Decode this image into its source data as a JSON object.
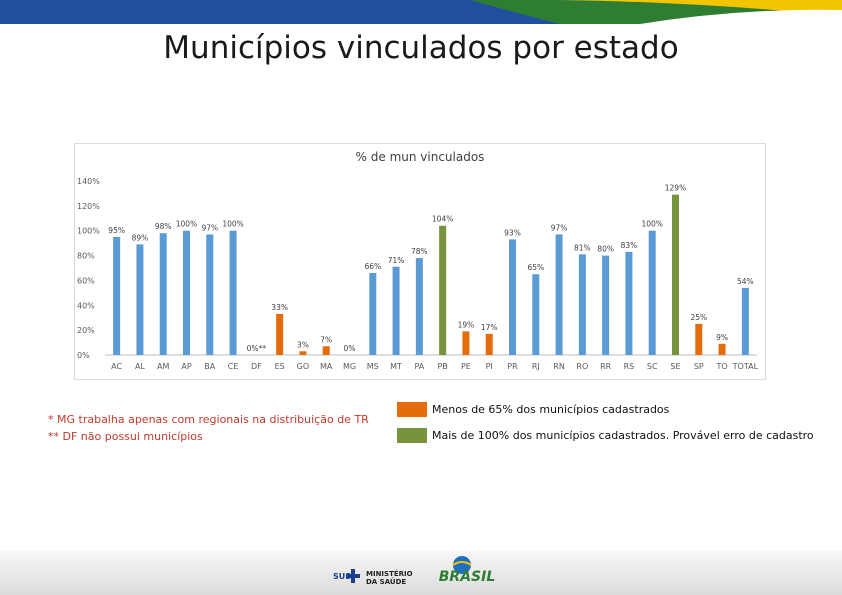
{
  "slide": {
    "title": "Municípios vinculados por estado"
  },
  "chart_data": {
    "type": "bar",
    "title": "% de mun vinculados",
    "y_ticks": [
      "140%",
      "120%",
      "100%",
      "80%",
      "60%",
      "40%",
      "20%",
      "0%"
    ],
    "ylim": [
      0,
      140
    ],
    "grid": false,
    "categories": [
      "AC",
      "AL",
      "AM",
      "AP",
      "BA",
      "CE",
      "DF",
      "ES",
      "GO",
      "MA",
      "MG",
      "MS",
      "MT",
      "PA",
      "PB",
      "PE",
      "PI",
      "PR",
      "RJ",
      "RN",
      "RO",
      "RR",
      "RS",
      "SC",
      "SE",
      "SP",
      "TO",
      "TOTAL"
    ],
    "values": [
      95,
      89,
      98,
      100,
      97,
      100,
      0,
      33,
      3,
      7,
      0,
      66,
      71,
      78,
      104,
      19,
      17,
      93,
      65,
      97,
      81,
      80,
      83,
      100,
      129,
      25,
      9,
      54
    ],
    "value_labels": [
      "95%",
      "89%",
      "98%",
      "100%",
      "97%",
      "100%",
      "0%**",
      "33%",
      "3%",
      "7%",
      "0%",
      "66%",
      "71%",
      "78%",
      "104%",
      "19%",
      "17%",
      "93%",
      "65%",
      "97%",
      "81%",
      "80%",
      "83%",
      "100%",
      "129%",
      "25%",
      "9%",
      "54%"
    ],
    "bar_groups": [
      "normal",
      "normal",
      "normal",
      "normal",
      "normal",
      "normal",
      "below",
      "below",
      "below",
      "below",
      "below",
      "normal",
      "normal",
      "normal",
      "above",
      "below",
      "below",
      "normal",
      "normal",
      "normal",
      "normal",
      "normal",
      "normal",
      "normal",
      "above",
      "below",
      "below",
      "normal"
    ],
    "colors": {
      "normal": "#5b9bd5",
      "below": "#e46c0a",
      "above": "#77933c",
      "title": "#404040",
      "tick": "#595959"
    }
  },
  "notes": {
    "mg": "* MG trabalha apenas com regionais na distribuição de TR",
    "df": "** DF não possui municípios"
  },
  "legend": {
    "below_label": "Menos de 65% dos municípios cadastrados",
    "above_label": "Mais de 100% dos municípios cadastrados. Provável erro de cadastro",
    "below_color": "#e46c0a",
    "above_color": "#77933c"
  },
  "footer": {
    "sus_text": "SUS",
    "ministry_line1": "MINISTÉRIO",
    "ministry_line2": "DA SAÚDE",
    "brasil_text": "BRASIL"
  }
}
